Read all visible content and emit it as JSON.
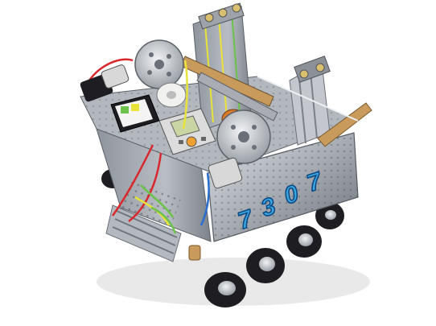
{
  "photo": {
    "subject": "competition-robot",
    "background_color": "#ffffff",
    "team_number_decal": [
      "7",
      "3",
      "0",
      "7"
    ],
    "colors": {
      "aluminum": "#a9adb3",
      "aluminum_dark": "#6f747b",
      "aluminum_light": "#d9dde2",
      "tire": "#1e1e22",
      "hub": "#b9bcc2",
      "wire_red": "#d8282c",
      "wire_yellow": "#e8e23a",
      "wire_green": "#6cc24a",
      "wire_blue": "#2a6fd0",
      "decal_fill": "#3aa7e0",
      "decal_stroke": "#0c4a86",
      "motor_orange": "#d97a2a",
      "controller_gray": "#dcdcdc",
      "controller_screen": "#c9d6a3",
      "wood": "#c89a5b"
    }
  }
}
